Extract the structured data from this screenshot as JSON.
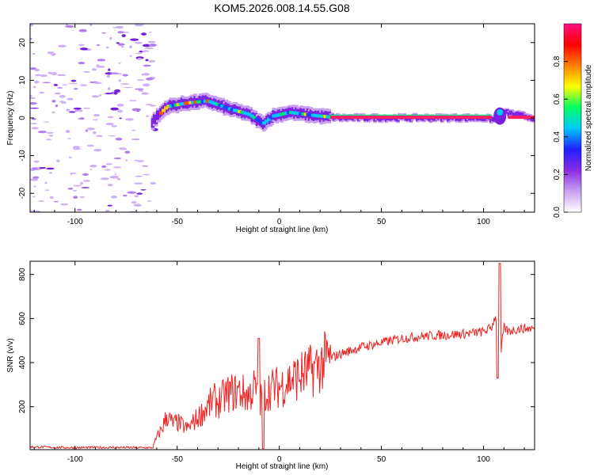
{
  "title": "KOM5.2026.008.14.55.G08",
  "chart_data": [
    {
      "type": "heatmap",
      "title": "KOM5.2026.008.14.55.G08",
      "xlabel": "Height of straight line (km)",
      "ylabel": "Frequency (Hz)",
      "xlim": [
        -122,
        125
      ],
      "ylim": [
        -25,
        25
      ],
      "xticks": [
        -100,
        -50,
        0,
        50,
        100
      ],
      "yticks": [
        -20,
        -10,
        0,
        10,
        20
      ],
      "colorbar": {
        "label": "Normalized spectral amplitude",
        "range": [
          0,
          1
        ],
        "ticks": [
          0.0,
          0.2,
          0.4,
          0.6,
          0.8
        ],
        "colors": [
          "#ffffff",
          "#c8a0f0",
          "#8a2be2",
          "#2020ff",
          "#00c8ff",
          "#00ff60",
          "#ffff00",
          "#ff8000",
          "#ff0000",
          "#ff1080"
        ]
      },
      "ridge": {
        "x": [
          -62,
          -55,
          -45,
          -35,
          -25,
          -15,
          -8,
          -3,
          5,
          12,
          20,
          30,
          50,
          80,
          100,
          106,
          110,
          125
        ],
        "freq": [
          -1,
          3,
          4,
          4.5,
          2.5,
          1,
          -1.5,
          0.5,
          1.5,
          1,
          0.5,
          0,
          0,
          0,
          0,
          -0.5,
          1.5,
          0
        ]
      }
    },
    {
      "type": "line",
      "title": "",
      "xlabel": "Height of straight line (km)",
      "ylabel": "SNR (v/v)",
      "xlim": [
        -122,
        125
      ],
      "ylim": [
        5,
        860
      ],
      "xticks": [
        -100,
        -50,
        0,
        50,
        100
      ],
      "yticks": [
        200,
        400,
        600,
        800
      ],
      "color": "#ee2222",
      "series": [
        {
          "name": "SNR",
          "x": [
            -122,
            -110,
            -100,
            -90,
            -80,
            -70,
            -62,
            -60,
            -57,
            -55,
            -52,
            -50,
            -45,
            -40,
            -35,
            -32,
            -30,
            -25,
            -20,
            -15,
            -12,
            -10,
            -8,
            -5,
            0,
            5,
            10,
            15,
            20,
            25,
            30,
            40,
            50,
            60,
            70,
            80,
            90,
            100,
            104,
            106,
            107,
            108,
            110,
            112,
            115,
            120,
            125
          ],
          "y": [
            18,
            15,
            14,
            15,
            15,
            14,
            14,
            60,
            110,
            160,
            120,
            130,
            100,
            150,
            200,
            230,
            220,
            260,
            270,
            250,
            290,
            210,
            250,
            280,
            290,
            320,
            340,
            360,
            390,
            420,
            440,
            470,
            490,
            510,
            520,
            525,
            530,
            540,
            560,
            620,
            520,
            400,
            560,
            540,
            550,
            555,
            555
          ]
        }
      ],
      "spikes": [
        {
          "x": -10,
          "y": 510
        },
        {
          "x": -8,
          "y": 10
        },
        {
          "x": 107,
          "y": 330
        },
        {
          "x": 108,
          "y": 850
        }
      ]
    }
  ]
}
